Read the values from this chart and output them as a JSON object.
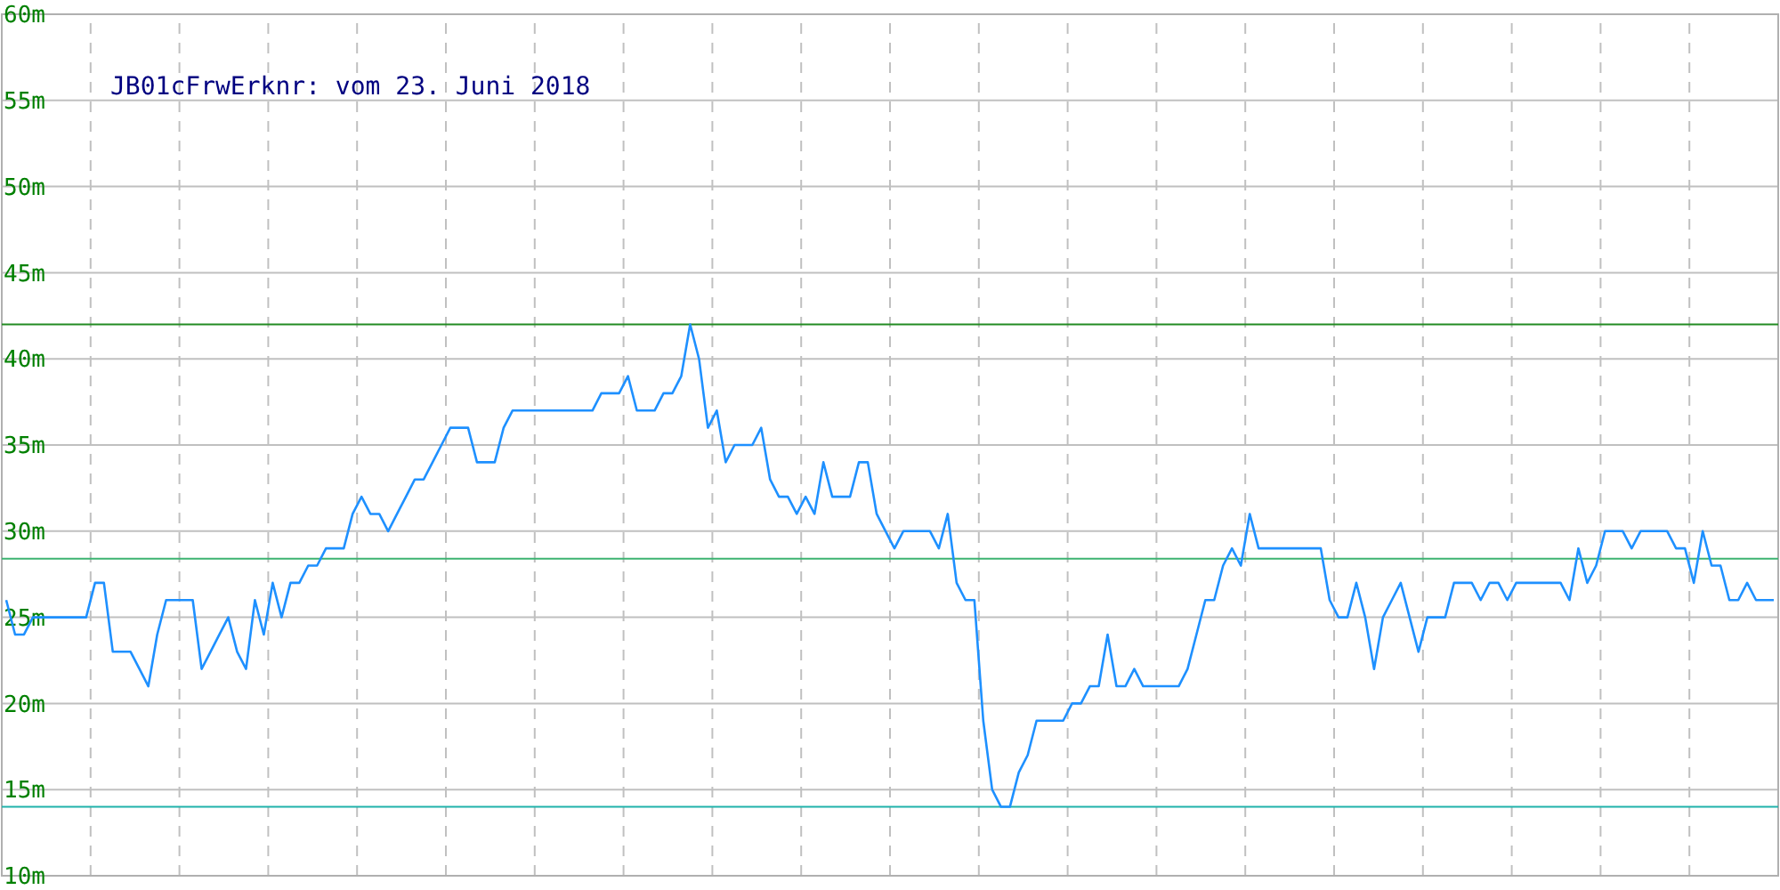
{
  "chart_data": {
    "type": "line",
    "title": "JB01cFrwErknr: vom 23. Juni 2018",
    "categories": [
      null,
      null,
      null,
      null,
      null,
      null,
      null,
      null,
      null,
      null,
      null,
      null,
      null,
      null,
      null,
      null,
      null,
      null,
      null,
      null,
      null,
      null,
      null,
      null,
      null,
      null,
      null,
      null,
      null,
      null,
      null,
      null,
      null,
      null,
      null,
      null,
      null,
      null,
      null,
      null,
      null,
      null,
      null,
      null,
      null,
      null,
      null,
      null,
      null,
      null,
      null,
      null,
      null,
      null,
      null,
      null,
      null,
      null,
      null,
      null,
      null,
      null,
      null,
      null,
      null,
      null,
      null,
      null,
      null,
      null,
      null,
      null,
      null,
      null,
      null,
      null,
      null,
      null,
      null,
      null,
      null,
      null,
      null,
      null,
      null,
      null,
      null,
      null,
      null,
      null,
      null,
      null,
      null,
      null,
      null,
      null,
      null,
      null,
      null,
      null,
      null,
      null,
      null,
      null,
      null,
      null,
      null,
      null,
      null,
      null,
      null,
      null,
      null,
      null,
      null,
      null,
      null,
      null,
      null,
      null,
      null,
      null,
      null,
      null,
      null,
      null,
      null,
      null,
      null,
      null,
      null,
      null,
      null,
      null,
      null,
      null,
      null,
      null,
      null,
      null,
      null,
      null,
      null,
      null,
      null,
      null,
      null,
      null,
      null,
      null,
      null,
      null,
      null,
      null,
      null,
      null,
      null,
      null,
      null,
      null,
      null,
      null,
      null,
      null,
      null,
      null,
      null,
      null,
      null,
      null,
      null,
      null,
      null,
      null,
      null,
      null,
      null,
      null,
      null,
      null,
      null,
      null,
      null,
      null,
      null,
      null,
      null,
      null,
      null,
      null,
      null,
      null,
      null,
      null,
      null,
      null,
      null,
      null,
      null,
      null
    ],
    "series": [
      {
        "color": "#1e90ff",
        "values": [
          26,
          24,
          24,
          25,
          25,
          25,
          25,
          25,
          25,
          25,
          27,
          27,
          23,
          23,
          23,
          22,
          21,
          24,
          26,
          26,
          26,
          26,
          22,
          23,
          24,
          25,
          23,
          22,
          26,
          24,
          27,
          25,
          27,
          27,
          28,
          28,
          29,
          29,
          29,
          31,
          32,
          31,
          31,
          30,
          31,
          32,
          33,
          33,
          34,
          35,
          36,
          36,
          36,
          34,
          34,
          34,
          36,
          37,
          37,
          37,
          37,
          37,
          37,
          37,
          37,
          37,
          37,
          38,
          38,
          38,
          39,
          37,
          37,
          37,
          38,
          38,
          39,
          42,
          40,
          36,
          37,
          34,
          35,
          35,
          35,
          36,
          33,
          32,
          32,
          31,
          32,
          31,
          34,
          32,
          32,
          32,
          34,
          34,
          31,
          30,
          29,
          30,
          30,
          30,
          30,
          29,
          31,
          27,
          26,
          26,
          19,
          15,
          14,
          14,
          16,
          17,
          19,
          19,
          19,
          19,
          20,
          20,
          21,
          21,
          24,
          21,
          21,
          22,
          21,
          21,
          21,
          21,
          21,
          22,
          24,
          26,
          26,
          28,
          29,
          28,
          31,
          29,
          29,
          29,
          29,
          29,
          29,
          29,
          29,
          26,
          25,
          25,
          27,
          25,
          22,
          25,
          26,
          27,
          25,
          23,
          25,
          25,
          25,
          27,
          27,
          27,
          26,
          27,
          27,
          26,
          27,
          27,
          27,
          27,
          27,
          27,
          26,
          29,
          27,
          28,
          30,
          30,
          30,
          29,
          30,
          30,
          30,
          30,
          29,
          29,
          27,
          30,
          28,
          28,
          26,
          26,
          27,
          26,
          26,
          26
        ]
      }
    ],
    "ylim": [
      10,
      60
    ],
    "yticks": [
      {
        "value": 10,
        "label": "10m"
      },
      {
        "value": 15,
        "label": "15m"
      },
      {
        "value": 20,
        "label": "20m"
      },
      {
        "value": 25,
        "label": "25m"
      },
      {
        "value": 30,
        "label": "30m"
      },
      {
        "value": 35,
        "label": "35m"
      },
      {
        "value": 40,
        "label": "40m"
      },
      {
        "value": 45,
        "label": "45m"
      },
      {
        "value": 50,
        "label": "50m"
      },
      {
        "value": 55,
        "label": "55m"
      },
      {
        "value": 60,
        "label": "60m"
      }
    ],
    "grid": true,
    "ref_lines": [
      {
        "axis": "y",
        "value": 42,
        "color": "#228b22"
      },
      {
        "axis": "y",
        "value": 28.4,
        "color": "#3cb371"
      },
      {
        "axis": "y",
        "value": 14,
        "color": "#20b2aa"
      }
    ]
  }
}
